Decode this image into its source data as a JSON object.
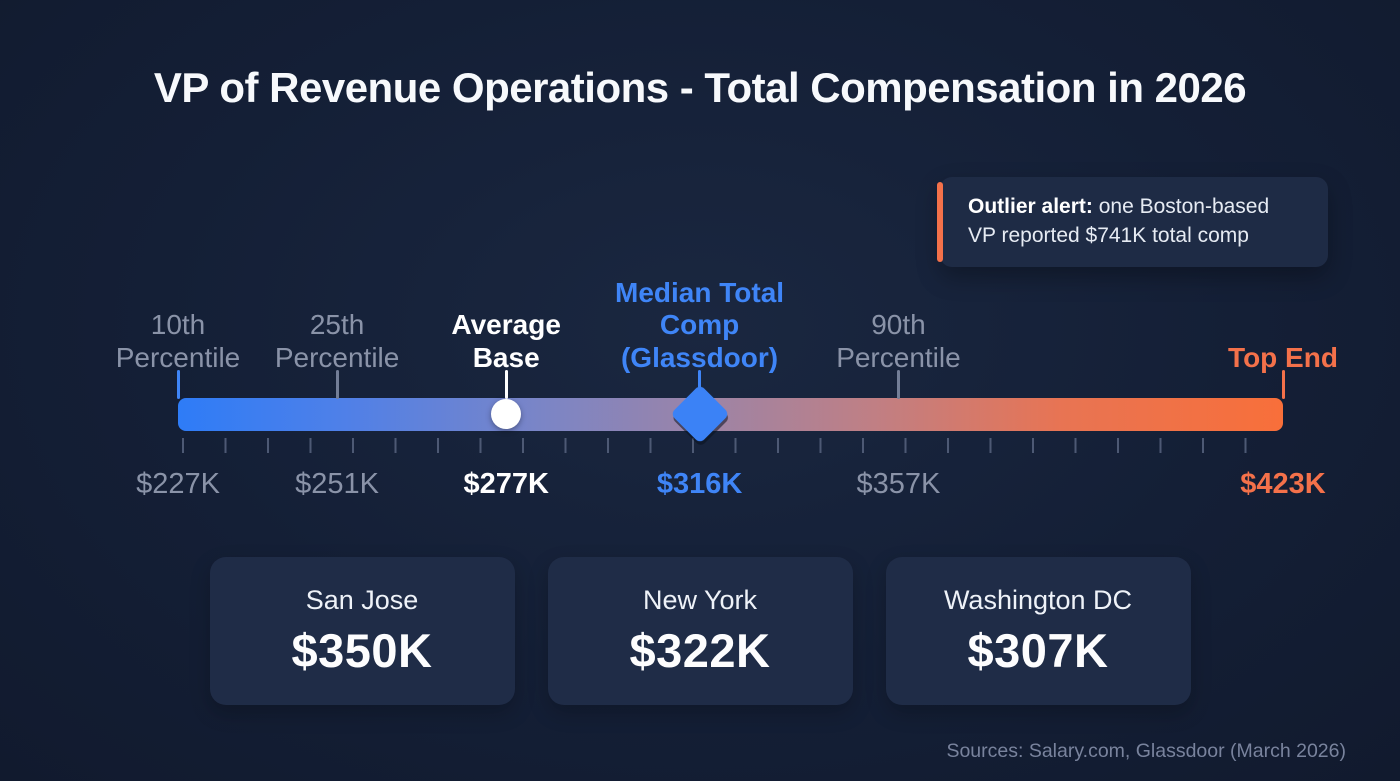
{
  "header": {
    "title": "VP of Revenue Operations - Total Compensation in 2026"
  },
  "callout": {
    "bold_prefix": "Outlier alert:",
    "text": " one Boston-based VP reported $741K total comp"
  },
  "chart_data": {
    "type": "bar",
    "subtype": "horizontal-gradient-compensation-scale",
    "title": "VP of Revenue Operations - Total Compensation in 2026",
    "unit": "USD (thousands)",
    "axis_range_k": [
      227,
      423
    ],
    "gradient_colors": [
      "#2E7CF7",
      "#F8703A"
    ],
    "markers": [
      {
        "label": "10th Percentile",
        "value_label": "$227K",
        "value_k": 227,
        "position_pct": 0,
        "label_color": "#8A93A8",
        "tick_color": "#3F85F7",
        "marker_style": "tick"
      },
      {
        "label": "25th Percentile",
        "value_label": "$251K",
        "value_k": 251,
        "position_pct": 14.4,
        "label_color": "#8A93A8",
        "tick_color": "#737E97",
        "marker_style": "tick"
      },
      {
        "label": "Average Base",
        "value_label": "$277K",
        "value_k": 277,
        "position_pct": 29.7,
        "label_color": "#FFFFFF",
        "tick_color": "#FFFFFF",
        "marker_style": "circle"
      },
      {
        "label": "Median Total Comp (Glassdoor)",
        "value_label": "$316K",
        "value_k": 316,
        "position_pct": 47.2,
        "label_color": "#3F85F7",
        "tick_color": "#3F85F7",
        "marker_style": "diamond"
      },
      {
        "label": "90th Percentile",
        "value_label": "$357K",
        "value_k": 357,
        "position_pct": 65.2,
        "label_color": "#8A93A8",
        "tick_color": "#737E97",
        "marker_style": "tick"
      },
      {
        "label": "Top End",
        "value_label": "$423K",
        "value_k": 423,
        "position_pct": 100,
        "label_color": "#F4714A",
        "tick_color": "#F4714A",
        "marker_style": "tick"
      }
    ],
    "city_cards": [
      {
        "name": "San Jose",
        "value_label": "$350K",
        "value_k": 350
      },
      {
        "name": "New York",
        "value_label": "$322K",
        "value_k": 322
      },
      {
        "name": "Washington DC",
        "value_label": "$307K",
        "value_k": 307
      }
    ],
    "annotation": "Outlier alert: one Boston-based VP reported $741K total comp",
    "source": "Sources: Salary.com, Glassdoor (March 2026)"
  },
  "footer": {
    "source": "Sources: Salary.com, Glassdoor (March 2026)"
  }
}
